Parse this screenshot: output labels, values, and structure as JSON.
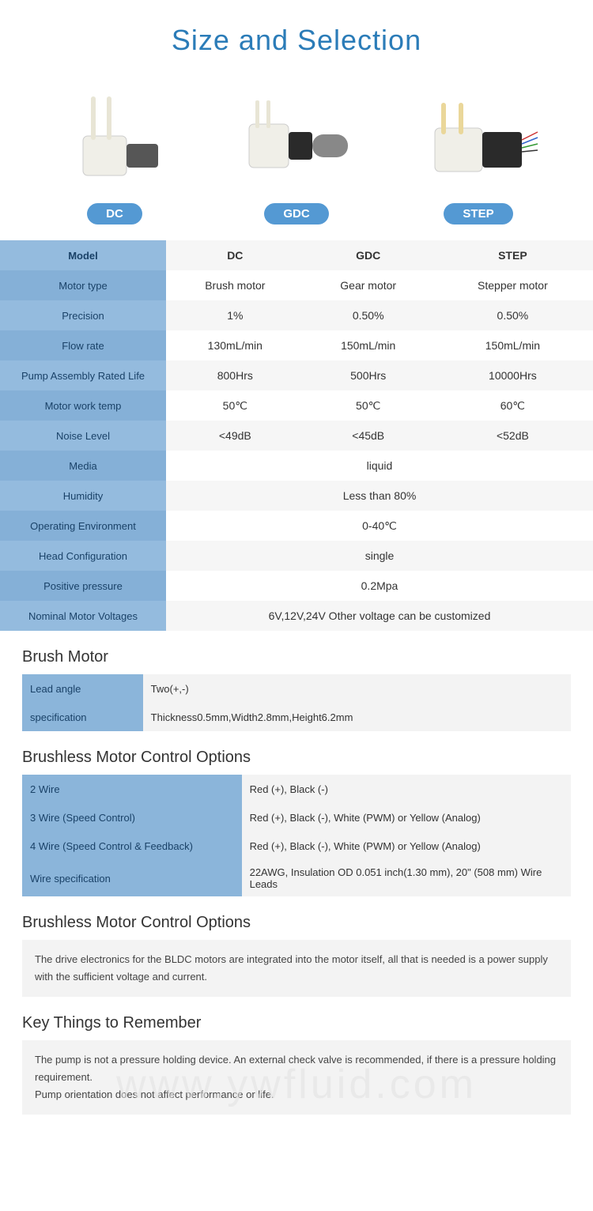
{
  "title": "Size and Selection",
  "products": [
    {
      "badge": "DC"
    },
    {
      "badge": "GDC"
    },
    {
      "badge": "STEP"
    }
  ],
  "spec_rows": [
    {
      "label": "Model",
      "dc": "DC",
      "gdc": "GDC",
      "step": "STEP",
      "header": true
    },
    {
      "label": "Motor type",
      "dc": "Brush motor",
      "gdc": "Gear motor",
      "step": "Stepper motor"
    },
    {
      "label": "Precision",
      "dc": "1%",
      "gdc": "0.50%",
      "step": "0.50%"
    },
    {
      "label": "Flow rate",
      "dc": "130mL/min",
      "gdc": "150mL/min",
      "step": "150mL/min"
    },
    {
      "label": "Pump Assembly Rated Life",
      "dc": "800Hrs",
      "gdc": "500Hrs",
      "step": "10000Hrs"
    },
    {
      "label": "Motor work temp",
      "dc": "50℃",
      "gdc": "50℃",
      "step": "60℃"
    },
    {
      "label": "Noise Level",
      "dc": "<49dB",
      "gdc": "<45dB",
      "step": "<52dB"
    },
    {
      "label": "Media",
      "merged": "liquid"
    },
    {
      "label": "Humidity",
      "merged": "Less than 80%"
    },
    {
      "label": "Operating Environment",
      "merged": "0-40℃"
    },
    {
      "label": "Head Configuration",
      "merged": "single"
    },
    {
      "label": "Positive pressure",
      "merged": "0.2Mpa"
    },
    {
      "label": "Nominal Motor Voltages",
      "merged": "6V,12V,24V Other voltage can be customized"
    }
  ],
  "brush_heading": "Brush Motor",
  "brush_rows": [
    {
      "label": "Lead angle",
      "val": "Two(+,-)",
      "lw": "22%"
    },
    {
      "label": "specification",
      "val": "Thickness0.5mm,Width2.8mm,Height6.2mm",
      "lw": "22%"
    }
  ],
  "bldc_heading": "Brushless Motor Control Options",
  "bldc_rows": [
    {
      "label": "2 Wire",
      "val": "Red (+), Black (-)",
      "lw": "40%"
    },
    {
      "label": "3 Wire (Speed Control)",
      "val": "Red (+), Black (-), White (PWM) or Yellow (Analog)",
      "lw": "40%"
    },
    {
      "label": "4 Wire (Speed Control & Feedback)",
      "val": "Red (+), Black (-), White (PWM) or Yellow (Analog)",
      "lw": "40%"
    },
    {
      "label": "Wire specification",
      "val": "22AWG, Insulation OD 0.051 inch(1.30 mm), 20\" (508 mm) Wire Leads",
      "lw": "40%"
    }
  ],
  "bldc2_heading": "Brushless Motor Control Options",
  "bldc2_text": "The drive electronics for the BLDC motors are integrated into the motor itself, all that is needed is a power supply with the sufficient voltage and current.",
  "key_heading": "Key Things to Remember",
  "key_text1": "The pump is not a pressure holding device. An external check valve is recommended, if there is a pressure holding requirement.",
  "key_text2": "Pump orientation does not affect performance or life.",
  "watermark": "www.ywfluid.com",
  "colors": {
    "title": "#2b7cb8",
    "badge_bg": "#5499d3",
    "label_bg_a": "#94bbde",
    "label_bg_b": "#85b0d7",
    "info_bg": "#f3f3f3"
  }
}
